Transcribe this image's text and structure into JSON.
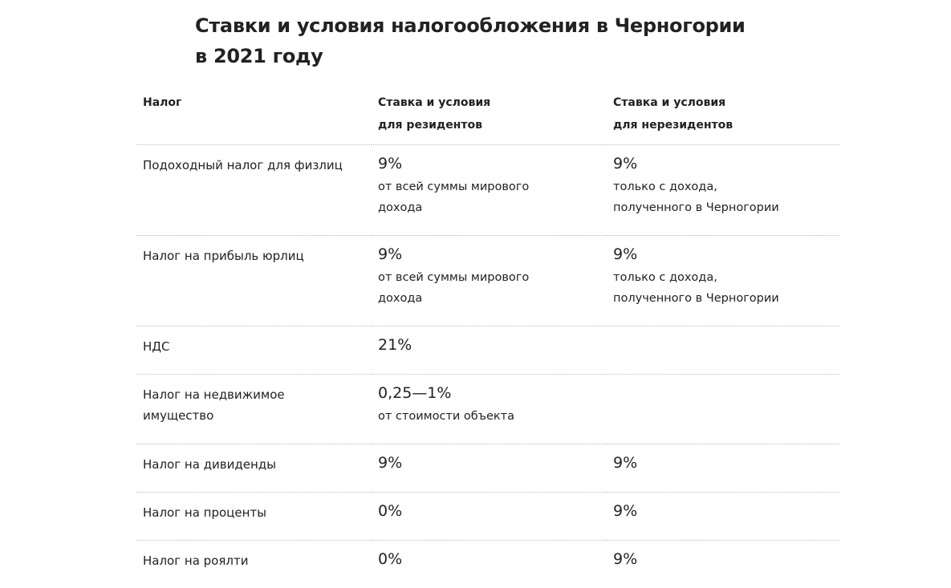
{
  "title": "Ставки и условия налогообложения в Черногории в 2021 году",
  "headers": [
    "Налог",
    "Ставка и условия для резидентов",
    "Ставка и условия для нерезидентов"
  ],
  "rows": [
    {
      "tax": "Подоходный налог для физлиц",
      "res_rate": "9%",
      "res_note": "от всей суммы мирового дохода",
      "non_rate": "9%",
      "non_note": "только с дохода, полученного в Черногории"
    },
    {
      "tax": "Налог на прибыль юрлиц",
      "res_rate": "9%",
      "res_note": "от всей суммы мирового дохода",
      "non_rate": "9%",
      "non_note": "только с дохода, полученного в Черногории"
    },
    {
      "tax": "НДС",
      "res_rate": "21%",
      "res_note": null,
      "non_rate": null,
      "non_note": null
    },
    {
      "tax": "Налог на недвижимое имущество",
      "res_rate": "0,25—1%",
      "res_note": "от стоимости объекта",
      "non_rate": null,
      "non_note": null
    },
    {
      "tax": "Налог на дивиденды",
      "res_rate": "9%",
      "res_note": null,
      "non_rate": "9%",
      "non_note": null
    },
    {
      "tax": "Налог на проценты",
      "res_rate": "0%",
      "res_note": null,
      "non_rate": "9%",
      "non_note": null
    },
    {
      "tax": "Налог на роялти",
      "res_rate": "0%",
      "res_note": null,
      "non_rate": "9%",
      "non_note": null
    }
  ]
}
